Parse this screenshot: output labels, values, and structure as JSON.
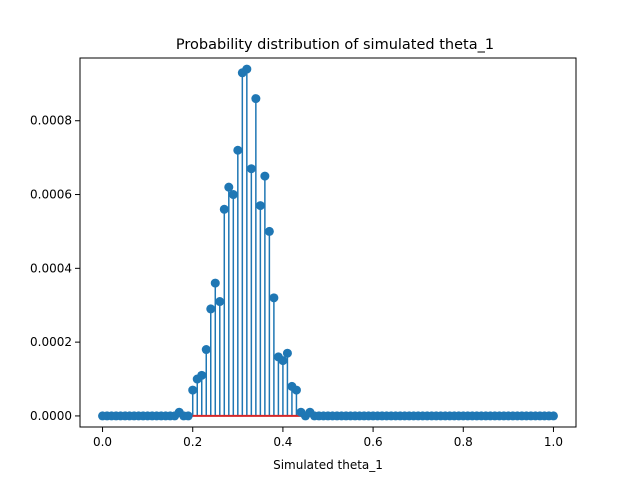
{
  "chart_data": {
    "type": "stem",
    "title": "Probability distribution of simulated theta_1",
    "xlabel": "Simulated theta_1",
    "ylabel": "",
    "xlim": [
      -0.05,
      1.05
    ],
    "ylim": [
      -3e-05,
      0.00097
    ],
    "xticks": [
      0.0,
      0.2,
      0.4,
      0.6,
      0.8,
      1.0
    ],
    "xtick_labels": [
      "0.0",
      "0.2",
      "0.4",
      "0.6",
      "0.8",
      "1.0"
    ],
    "yticks": [
      0.0,
      0.0002,
      0.0004,
      0.0006,
      0.0008
    ],
    "ytick_labels": [
      "0.0000",
      "0.0002",
      "0.0004",
      "0.0006",
      "0.0008"
    ],
    "grid": false,
    "colors": {
      "stem": "#1f77b4",
      "marker": "#1f77b4",
      "baseline": "#d62728"
    },
    "x_start": 0.0,
    "x_step": 0.01,
    "values": [
      0,
      0,
      0,
      0,
      0,
      0,
      0,
      0,
      0,
      0,
      0,
      0,
      0,
      0,
      0,
      0,
      0,
      1e-05,
      0,
      0,
      7e-05,
      0.0001,
      0.00011,
      0.00018,
      0.00029,
      0.00036,
      0.00031,
      0.00056,
      0.00062,
      0.0006,
      0.00072,
      0.00093,
      0.00094,
      0.00067,
      0.00086,
      0.00057,
      0.00065,
      0.0005,
      0.00032,
      0.00016,
      0.00015,
      0.00017,
      8e-05,
      7e-05,
      1e-05,
      0,
      1e-05,
      0,
      0,
      0,
      0,
      0,
      0,
      0,
      0,
      0,
      0,
      0,
      0,
      0,
      0,
      0,
      0,
      0,
      0,
      0,
      0,
      0,
      0,
      0,
      0,
      0,
      0,
      0,
      0,
      0,
      0,
      0,
      0,
      0,
      0,
      0,
      0,
      0,
      0,
      0,
      0,
      0,
      0,
      0,
      0,
      0,
      0,
      0,
      0,
      0,
      0,
      0,
      0,
      0,
      0
    ]
  }
}
